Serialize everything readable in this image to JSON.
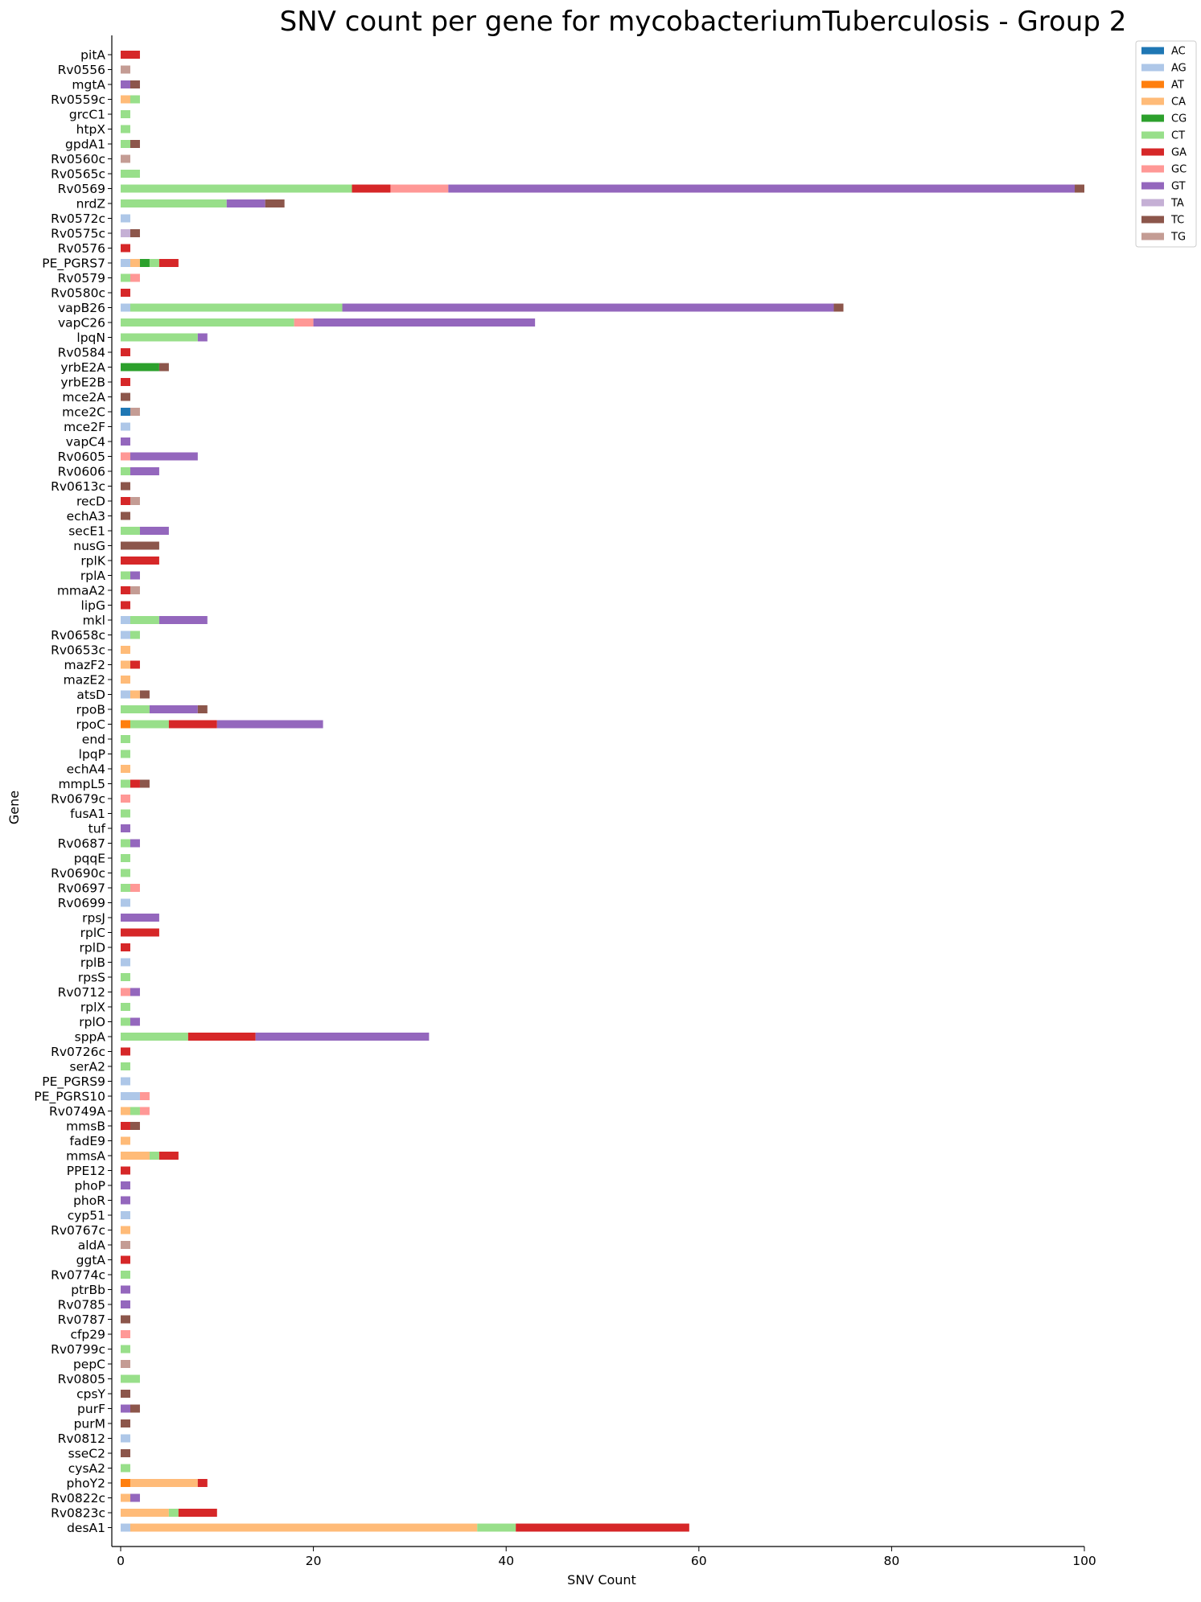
{
  "chart_data": {
    "type": "bar",
    "orientation": "horizontal",
    "stacked": true,
    "title": "SNV count per gene for mycobacteriumTuberculosis - Group 2",
    "xlabel": "SNV Count",
    "ylabel": "Gene",
    "xlim": [
      0,
      100
    ],
    "xticks": [
      "0",
      "20",
      "40",
      "60",
      "80",
      "100"
    ],
    "legend_position": "top-right outside",
    "grid": false,
    "series": [
      {
        "name": "AC",
        "color": "#1f77b4"
      },
      {
        "name": "AG",
        "color": "#aec7e8"
      },
      {
        "name": "AT",
        "color": "#ff7f0e"
      },
      {
        "name": "CA",
        "color": "#ffbb78"
      },
      {
        "name": "CG",
        "color": "#2ca02c"
      },
      {
        "name": "CT",
        "color": "#98df8a"
      },
      {
        "name": "GA",
        "color": "#d62728"
      },
      {
        "name": "GC",
        "color": "#ff9896"
      },
      {
        "name": "GT",
        "color": "#9467bd"
      },
      {
        "name": "TA",
        "color": "#c5b0d5"
      },
      {
        "name": "TC",
        "color": "#8c564b"
      },
      {
        "name": "TG",
        "color": "#c49c94"
      }
    ],
    "categories": [
      {
        "gene": "pitA",
        "counts": {
          "GA": 2
        }
      },
      {
        "gene": "Rv0556",
        "counts": {
          "TG": 1
        }
      },
      {
        "gene": "mgtA",
        "counts": {
          "GT": 1,
          "TC": 1
        }
      },
      {
        "gene": "Rv0559c",
        "counts": {
          "CA": 1,
          "CT": 1
        }
      },
      {
        "gene": "grcC1",
        "counts": {
          "CT": 1
        }
      },
      {
        "gene": "htpX",
        "counts": {
          "CT": 1
        }
      },
      {
        "gene": "gpdA1",
        "counts": {
          "CT": 1,
          "TC": 1
        }
      },
      {
        "gene": "Rv0560c",
        "counts": {
          "TG": 1
        }
      },
      {
        "gene": "Rv0565c",
        "counts": {
          "CT": 2
        }
      },
      {
        "gene": "Rv0569",
        "counts": {
          "CT": 24,
          "GA": 4,
          "GC": 6,
          "GT": 65,
          "TC": 1
        }
      },
      {
        "gene": "nrdZ",
        "counts": {
          "CT": 11,
          "GT": 4,
          "TC": 2
        }
      },
      {
        "gene": "Rv0572c",
        "counts": {
          "AG": 1
        }
      },
      {
        "gene": "Rv0575c",
        "counts": {
          "TA": 1,
          "TC": 1
        }
      },
      {
        "gene": "Rv0576",
        "counts": {
          "GA": 1
        }
      },
      {
        "gene": "PE_PGRS7",
        "counts": {
          "AG": 1,
          "CA": 1,
          "CG": 1,
          "CT": 1,
          "GA": 2
        }
      },
      {
        "gene": "Rv0579",
        "counts": {
          "CT": 1,
          "GC": 1
        }
      },
      {
        "gene": "Rv0580c",
        "counts": {
          "GA": 1
        }
      },
      {
        "gene": "vapB26",
        "counts": {
          "AG": 1,
          "CT": 22,
          "GT": 51,
          "TC": 1
        }
      },
      {
        "gene": "vapC26",
        "counts": {
          "CT": 18,
          "GC": 2,
          "GT": 23
        }
      },
      {
        "gene": "lpqN",
        "counts": {
          "CT": 8,
          "GT": 1
        }
      },
      {
        "gene": "Rv0584",
        "counts": {
          "GA": 1
        }
      },
      {
        "gene": "yrbE2A",
        "counts": {
          "CG": 4,
          "TC": 1
        }
      },
      {
        "gene": "yrbE2B",
        "counts": {
          "GA": 1
        }
      },
      {
        "gene": "mce2A",
        "counts": {
          "TC": 1
        }
      },
      {
        "gene": "mce2C",
        "counts": {
          "AC": 1,
          "TG": 1
        }
      },
      {
        "gene": "mce2F",
        "counts": {
          "AG": 1
        }
      },
      {
        "gene": "vapC4",
        "counts": {
          "GT": 1
        }
      },
      {
        "gene": "Rv0605",
        "counts": {
          "GC": 1,
          "GT": 7
        }
      },
      {
        "gene": "Rv0606",
        "counts": {
          "CT": 1,
          "GT": 3
        }
      },
      {
        "gene": "Rv0613c",
        "counts": {
          "TC": 1
        }
      },
      {
        "gene": "recD",
        "counts": {
          "GA": 1,
          "TG": 1
        }
      },
      {
        "gene": "echA3",
        "counts": {
          "TC": 1
        }
      },
      {
        "gene": "secE1",
        "counts": {
          "CT": 2,
          "GT": 3
        }
      },
      {
        "gene": "nusG",
        "counts": {
          "TC": 4
        }
      },
      {
        "gene": "rplK",
        "counts": {
          "GA": 4
        }
      },
      {
        "gene": "rplA",
        "counts": {
          "CT": 1,
          "GT": 1
        }
      },
      {
        "gene": "mmaA2",
        "counts": {
          "GA": 1,
          "TG": 1
        }
      },
      {
        "gene": "lipG",
        "counts": {
          "GA": 1
        }
      },
      {
        "gene": "mkl",
        "counts": {
          "AG": 1,
          "CT": 3,
          "GT": 5
        }
      },
      {
        "gene": "Rv0658c",
        "counts": {
          "AG": 1,
          "CT": 1
        }
      },
      {
        "gene": "Rv0653c",
        "counts": {
          "CA": 1
        }
      },
      {
        "gene": "mazF2",
        "counts": {
          "CA": 1,
          "GA": 1
        }
      },
      {
        "gene": "mazE2",
        "counts": {
          "CA": 1
        }
      },
      {
        "gene": "atsD",
        "counts": {
          "AG": 1,
          "CA": 1,
          "TC": 1
        }
      },
      {
        "gene": "rpoB",
        "counts": {
          "CT": 3,
          "GT": 5,
          "TC": 1
        }
      },
      {
        "gene": "rpoC",
        "counts": {
          "AT": 1,
          "CT": 4,
          "GA": 5,
          "GT": 11
        }
      },
      {
        "gene": "end",
        "counts": {
          "CT": 1
        }
      },
      {
        "gene": "lpqP",
        "counts": {
          "CT": 1
        }
      },
      {
        "gene": "echA4",
        "counts": {
          "CA": 1
        }
      },
      {
        "gene": "mmpL5",
        "counts": {
          "CT": 1,
          "GA": 1,
          "TC": 1
        }
      },
      {
        "gene": "Rv0679c",
        "counts": {
          "GC": 1
        }
      },
      {
        "gene": "fusA1",
        "counts": {
          "CT": 1
        }
      },
      {
        "gene": "tuf",
        "counts": {
          "GT": 1
        }
      },
      {
        "gene": "Rv0687",
        "counts": {
          "CT": 1,
          "GT": 1
        }
      },
      {
        "gene": "pqqE",
        "counts": {
          "CT": 1
        }
      },
      {
        "gene": "Rv0690c",
        "counts": {
          "CT": 1
        }
      },
      {
        "gene": "Rv0697",
        "counts": {
          "CT": 1,
          "GC": 1
        }
      },
      {
        "gene": "Rv0699",
        "counts": {
          "AG": 1
        }
      },
      {
        "gene": "rpsJ",
        "counts": {
          "GT": 4
        }
      },
      {
        "gene": "rplC",
        "counts": {
          "GA": 4
        }
      },
      {
        "gene": "rplD",
        "counts": {
          "GA": 1
        }
      },
      {
        "gene": "rplB",
        "counts": {
          "AG": 1
        }
      },
      {
        "gene": "rpsS",
        "counts": {
          "CT": 1
        }
      },
      {
        "gene": "Rv0712",
        "counts": {
          "GC": 1,
          "GT": 1
        }
      },
      {
        "gene": "rplX",
        "counts": {
          "CT": 1
        }
      },
      {
        "gene": "rplO",
        "counts": {
          "CT": 1,
          "GT": 1
        }
      },
      {
        "gene": "sppA",
        "counts": {
          "CT": 7,
          "GA": 7,
          "GT": 18
        }
      },
      {
        "gene": "Rv0726c",
        "counts": {
          "GA": 1
        }
      },
      {
        "gene": "serA2",
        "counts": {
          "CT": 1
        }
      },
      {
        "gene": "PE_PGRS9",
        "counts": {
          "AG": 1
        }
      },
      {
        "gene": "PE_PGRS10",
        "counts": {
          "AG": 2,
          "GC": 1
        }
      },
      {
        "gene": "Rv0749A",
        "counts": {
          "CA": 1,
          "CT": 1,
          "GC": 1
        }
      },
      {
        "gene": "mmsB",
        "counts": {
          "GA": 1,
          "TC": 1
        }
      },
      {
        "gene": "fadE9",
        "counts": {
          "CA": 1
        }
      },
      {
        "gene": "mmsA",
        "counts": {
          "CA": 3,
          "CT": 1,
          "GA": 2
        }
      },
      {
        "gene": "PPE12",
        "counts": {
          "GA": 1
        }
      },
      {
        "gene": "phoP",
        "counts": {
          "GT": 1
        }
      },
      {
        "gene": "phoR",
        "counts": {
          "GT": 1
        }
      },
      {
        "gene": "cyp51",
        "counts": {
          "AG": 1
        }
      },
      {
        "gene": "Rv0767c",
        "counts": {
          "CA": 1
        }
      },
      {
        "gene": "aldA",
        "counts": {
          "TG": 1
        }
      },
      {
        "gene": "ggtA",
        "counts": {
          "GA": 1
        }
      },
      {
        "gene": "Rv0774c",
        "counts": {
          "CT": 1
        }
      },
      {
        "gene": "ptrBb",
        "counts": {
          "GT": 1
        }
      },
      {
        "gene": "Rv0785",
        "counts": {
          "GT": 1
        }
      },
      {
        "gene": "Rv0787",
        "counts": {
          "TC": 1
        }
      },
      {
        "gene": "cfp29",
        "counts": {
          "GC": 1
        }
      },
      {
        "gene": "Rv0799c",
        "counts": {
          "CT": 1
        }
      },
      {
        "gene": "pepC",
        "counts": {
          "TG": 1
        }
      },
      {
        "gene": "Rv0805",
        "counts": {
          "CT": 2
        }
      },
      {
        "gene": "cpsY",
        "counts": {
          "TC": 1
        }
      },
      {
        "gene": "purF",
        "counts": {
          "GT": 1,
          "TC": 1
        }
      },
      {
        "gene": "purM",
        "counts": {
          "TC": 1
        }
      },
      {
        "gene": "Rv0812",
        "counts": {
          "AG": 1
        }
      },
      {
        "gene": "sseC2",
        "counts": {
          "TC": 1
        }
      },
      {
        "gene": "cysA2",
        "counts": {
          "CT": 1
        }
      },
      {
        "gene": "phoY2",
        "counts": {
          "AT": 1,
          "CA": 7,
          "GA": 1
        }
      },
      {
        "gene": "Rv0822c",
        "counts": {
          "CA": 1,
          "GT": 1
        }
      },
      {
        "gene": "Rv0823c",
        "counts": {
          "CA": 5,
          "CT": 1,
          "GA": 4
        }
      },
      {
        "gene": "desA1",
        "counts": {
          "AG": 1,
          "CA": 36,
          "CT": 4,
          "GA": 18
        }
      }
    ]
  }
}
